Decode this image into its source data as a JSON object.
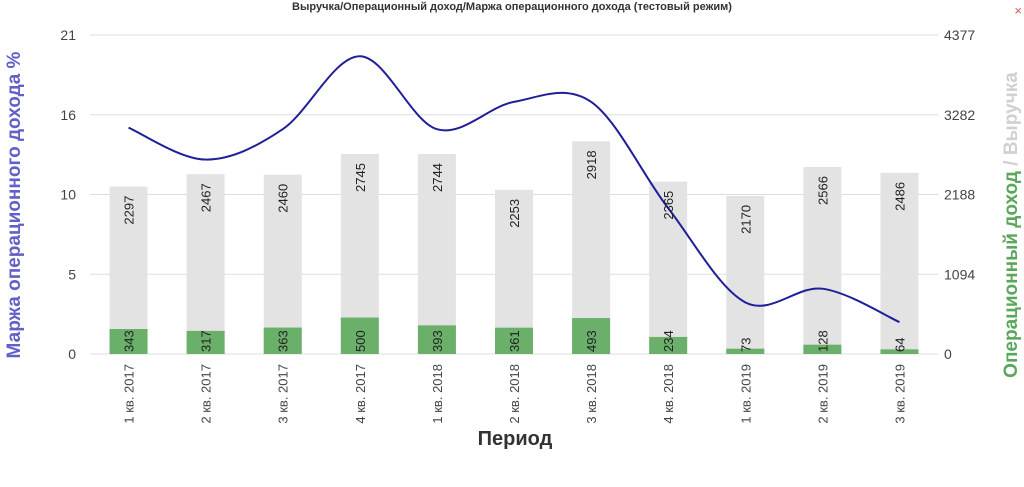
{
  "chart_data": {
    "type": "bar",
    "title": "Выручка/Операционный доход/Маржа операционного дохода (тестовый режим)",
    "xlabel": "Период",
    "ylabel_left": "Маржа операционного дохода %",
    "ylabel_right_part1": "Операционный доход",
    "ylabel_right_sep": " / ",
    "ylabel_right_part2": "Выручка",
    "categories": [
      "1 кв. 2017",
      "2 кв. 2017",
      "3 кв. 2017",
      "4 кв. 2017",
      "1 кв. 2018",
      "2 кв. 2018",
      "3 кв. 2018",
      "4 кв. 2018",
      "1 кв. 2019",
      "2 кв. 2019",
      "3 кв. 2019"
    ],
    "series": [
      {
        "name": "Выручка",
        "type": "bar",
        "axis": "right",
        "color": "#e3e3e3",
        "values": [
          2297,
          2467,
          2460,
          2745,
          2744,
          2253,
          2918,
          2365,
          2170,
          2566,
          2486
        ]
      },
      {
        "name": "Операционный доход",
        "type": "bar",
        "axis": "right",
        "color": "#6aaf6a",
        "values": [
          343,
          317,
          363,
          500,
          393,
          361,
          493,
          234,
          73,
          128,
          64
        ]
      },
      {
        "name": "Маржа операционного дохода %",
        "type": "line",
        "axis": "left",
        "color": "#1f1f9a",
        "values": [
          14.9,
          12.8,
          14.8,
          19.6,
          14.8,
          16.6,
          16.6,
          9.6,
          3.4,
          4.3,
          2.1
        ]
      }
    ],
    "y_left_ticks": [
      "0",
      "5",
      "10",
      "16",
      "21"
    ],
    "y_left_range": [
      0,
      21
    ],
    "y_right_ticks": [
      "0",
      "1094",
      "2188",
      "3282",
      "4377"
    ],
    "y_right_range": [
      0,
      4377
    ],
    "grid": true,
    "colors": {
      "left_axis_title": "#6060c8",
      "right_axis_title_green": "#5aa65a",
      "right_axis_title_gray": "#d0d0d0",
      "gridline": "#dddddd"
    }
  },
  "close_label": "×"
}
